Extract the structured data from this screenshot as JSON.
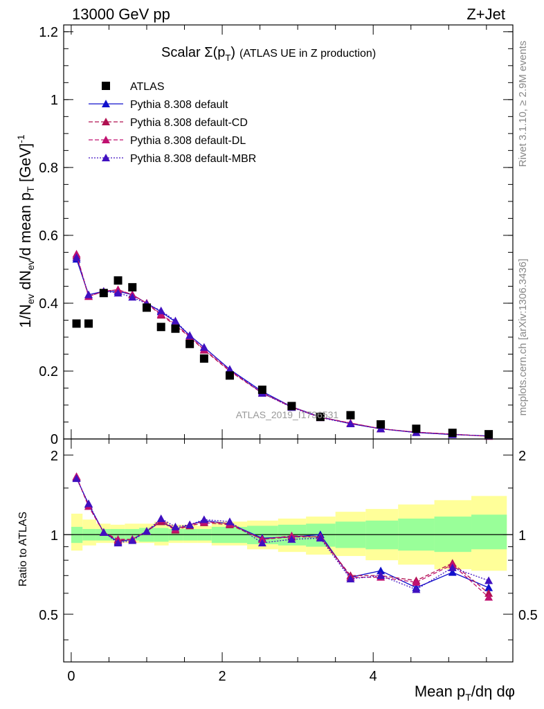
{
  "header": {
    "left": "13000 GeV pp",
    "right": "Z+Jet"
  },
  "title": {
    "main": "Scalar Σ(p",
    "sub": "T",
    "end": ")",
    "note": "(ATLAS UE in Z production)"
  },
  "side_labels": {
    "rivet": "Rivet 3.1.10, ≥ 2.9M events",
    "mcplots": "mcplots.cern.ch [arXiv:1306.3436]"
  },
  "watermark": "ATLAS_2019_I1736531",
  "axes": {
    "ylabel_top": "1/N_ev dN_ev/d mean p_T [GeV]^-1",
    "ylabel_bottom": "Ratio to ATLAS",
    "xlabel": "Mean p_T/dη dφ"
  },
  "colors": {
    "atlas": "#000000",
    "default": "#1010cc",
    "cd": "#b01050",
    "dl": "#c01070",
    "mbr": "#4010c0",
    "green_band": "#99ff99",
    "yellow_band": "#ffff99"
  },
  "chart_data": [
    {
      "type": "scatter",
      "panel": "main",
      "xlim": [
        -0.1,
        5.85
      ],
      "ylim": [
        0,
        1.22
      ],
      "xticks": [
        0,
        2,
        4
      ],
      "yticks": [
        0,
        0.2,
        0.4,
        0.6,
        0.8,
        1,
        1.2
      ],
      "ytick_labels": [
        "0",
        "0.2",
        "0.4",
        "0.6",
        "0.8",
        "1",
        "1.2"
      ],
      "legend_position": "top-left",
      "x": [
        0.07,
        0.23,
        0.43,
        0.62,
        0.81,
        1.0,
        1.19,
        1.38,
        1.57,
        1.76,
        2.1,
        2.53,
        2.92,
        3.3,
        3.7,
        4.1,
        4.57,
        5.05,
        5.53
      ],
      "series": [
        {
          "name": "ATLAS",
          "style": "square",
          "values": [
            0.34,
            0.34,
            0.43,
            0.467,
            0.447,
            0.387,
            0.33,
            0.325,
            0.28,
            0.237,
            0.187,
            0.145,
            0.097,
            0.065,
            0.07,
            0.043,
            0.03,
            0.018,
            0.014
          ]
        },
        {
          "name": "Pythia 8.308 default",
          "style": "solid",
          "values": [
            0.53,
            0.425,
            0.435,
            0.435,
            0.425,
            0.4,
            0.375,
            0.345,
            0.305,
            0.27,
            0.205,
            0.14,
            0.095,
            0.065,
            0.045,
            0.03,
            0.019,
            0.013,
            0.009
          ]
        },
        {
          "name": "Pythia 8.308 default-CD",
          "style": "dashed",
          "values": [
            0.54,
            0.42,
            0.435,
            0.44,
            0.425,
            0.4,
            0.365,
            0.335,
            0.3,
            0.262,
            0.2,
            0.135,
            0.094,
            0.064,
            0.047,
            0.03,
            0.02,
            0.014,
            0.008
          ]
        },
        {
          "name": "Pythia 8.308 default-DL",
          "style": "dashed",
          "values": [
            0.545,
            0.42,
            0.435,
            0.44,
            0.425,
            0.4,
            0.368,
            0.338,
            0.302,
            0.264,
            0.202,
            0.136,
            0.095,
            0.063,
            0.047,
            0.03,
            0.02,
            0.014,
            0.008
          ]
        },
        {
          "name": "Pythia 8.308 default-MBR",
          "style": "dotted",
          "values": [
            0.535,
            0.425,
            0.435,
            0.43,
            0.418,
            0.398,
            0.378,
            0.348,
            0.305,
            0.27,
            0.205,
            0.135,
            0.093,
            0.063,
            0.045,
            0.03,
            0.019,
            0.013,
            0.009
          ]
        }
      ]
    },
    {
      "type": "line",
      "panel": "ratio",
      "xlim": [
        -0.1,
        5.85
      ],
      "ylim": [
        0.33,
        2.3
      ],
      "yticks": [
        0.5,
        1,
        2
      ],
      "ytick_labels": [
        "0.5",
        "1",
        "2"
      ],
      "reference_line": 1,
      "x": [
        0.07,
        0.23,
        0.43,
        0.62,
        0.81,
        1.0,
        1.19,
        1.38,
        1.57,
        1.76,
        2.1,
        2.53,
        2.92,
        3.3,
        3.7,
        4.1,
        4.57,
        5.05,
        5.53
      ],
      "bin_edges": [
        0,
        0.15,
        0.33,
        0.52,
        0.71,
        0.9,
        1.1,
        1.29,
        1.48,
        1.67,
        1.86,
        2.33,
        2.74,
        3.11,
        3.5,
        3.9,
        4.33,
        4.81,
        5.3,
        5.77
      ],
      "bands": {
        "green_upper": [
          1.07,
          1.05,
          1.05,
          1.05,
          1.05,
          1.06,
          1.06,
          1.05,
          1.05,
          1.05,
          1.07,
          1.08,
          1.09,
          1.1,
          1.12,
          1.13,
          1.15,
          1.17,
          1.19
        ],
        "green_lower": [
          0.93,
          0.95,
          0.95,
          0.95,
          0.95,
          0.94,
          0.94,
          0.95,
          0.95,
          0.95,
          0.93,
          0.92,
          0.91,
          0.9,
          0.89,
          0.88,
          0.87,
          0.86,
          0.88
        ],
        "yellow_upper": [
          1.2,
          1.14,
          1.1,
          1.09,
          1.1,
          1.1,
          1.12,
          1.09,
          1.09,
          1.08,
          1.12,
          1.13,
          1.15,
          1.17,
          1.22,
          1.25,
          1.3,
          1.35,
          1.4
        ],
        "yellow_lower": [
          0.87,
          0.91,
          0.93,
          0.93,
          0.93,
          0.93,
          0.91,
          0.93,
          0.93,
          0.93,
          0.91,
          0.88,
          0.86,
          0.84,
          0.83,
          0.8,
          0.77,
          0.74,
          0.73
        ]
      },
      "series": [
        {
          "name": "Pythia 8.308 default",
          "values": [
            1.64,
            1.3,
            1.02,
            0.94,
            0.96,
            1.03,
            1.12,
            1.05,
            1.09,
            1.13,
            1.1,
            0.97,
            0.98,
            1.0,
            0.69,
            0.73,
            0.63,
            0.72,
            0.63
          ]
        },
        {
          "name": "Pythia 8.308 default-CD",
          "values": [
            1.65,
            1.28,
            1.02,
            0.95,
            0.96,
            1.03,
            1.12,
            1.04,
            1.08,
            1.11,
            1.09,
            0.96,
            0.98,
            0.98,
            0.7,
            0.7,
            0.67,
            0.78,
            0.6
          ]
        },
        {
          "name": "Pythia 8.308 default-DL",
          "values": [
            1.66,
            1.28,
            1.02,
            0.96,
            0.96,
            1.03,
            1.14,
            1.05,
            1.09,
            1.12,
            1.1,
            0.96,
            0.99,
            0.98,
            0.69,
            0.69,
            0.66,
            0.77,
            0.58
          ]
        },
        {
          "name": "Pythia 8.308 default-MBR",
          "values": [
            1.63,
            1.31,
            1.02,
            0.93,
            0.95,
            1.03,
            1.15,
            1.07,
            1.09,
            1.14,
            1.12,
            0.93,
            0.96,
            0.97,
            0.68,
            0.7,
            0.62,
            0.75,
            0.67
          ]
        }
      ]
    }
  ]
}
